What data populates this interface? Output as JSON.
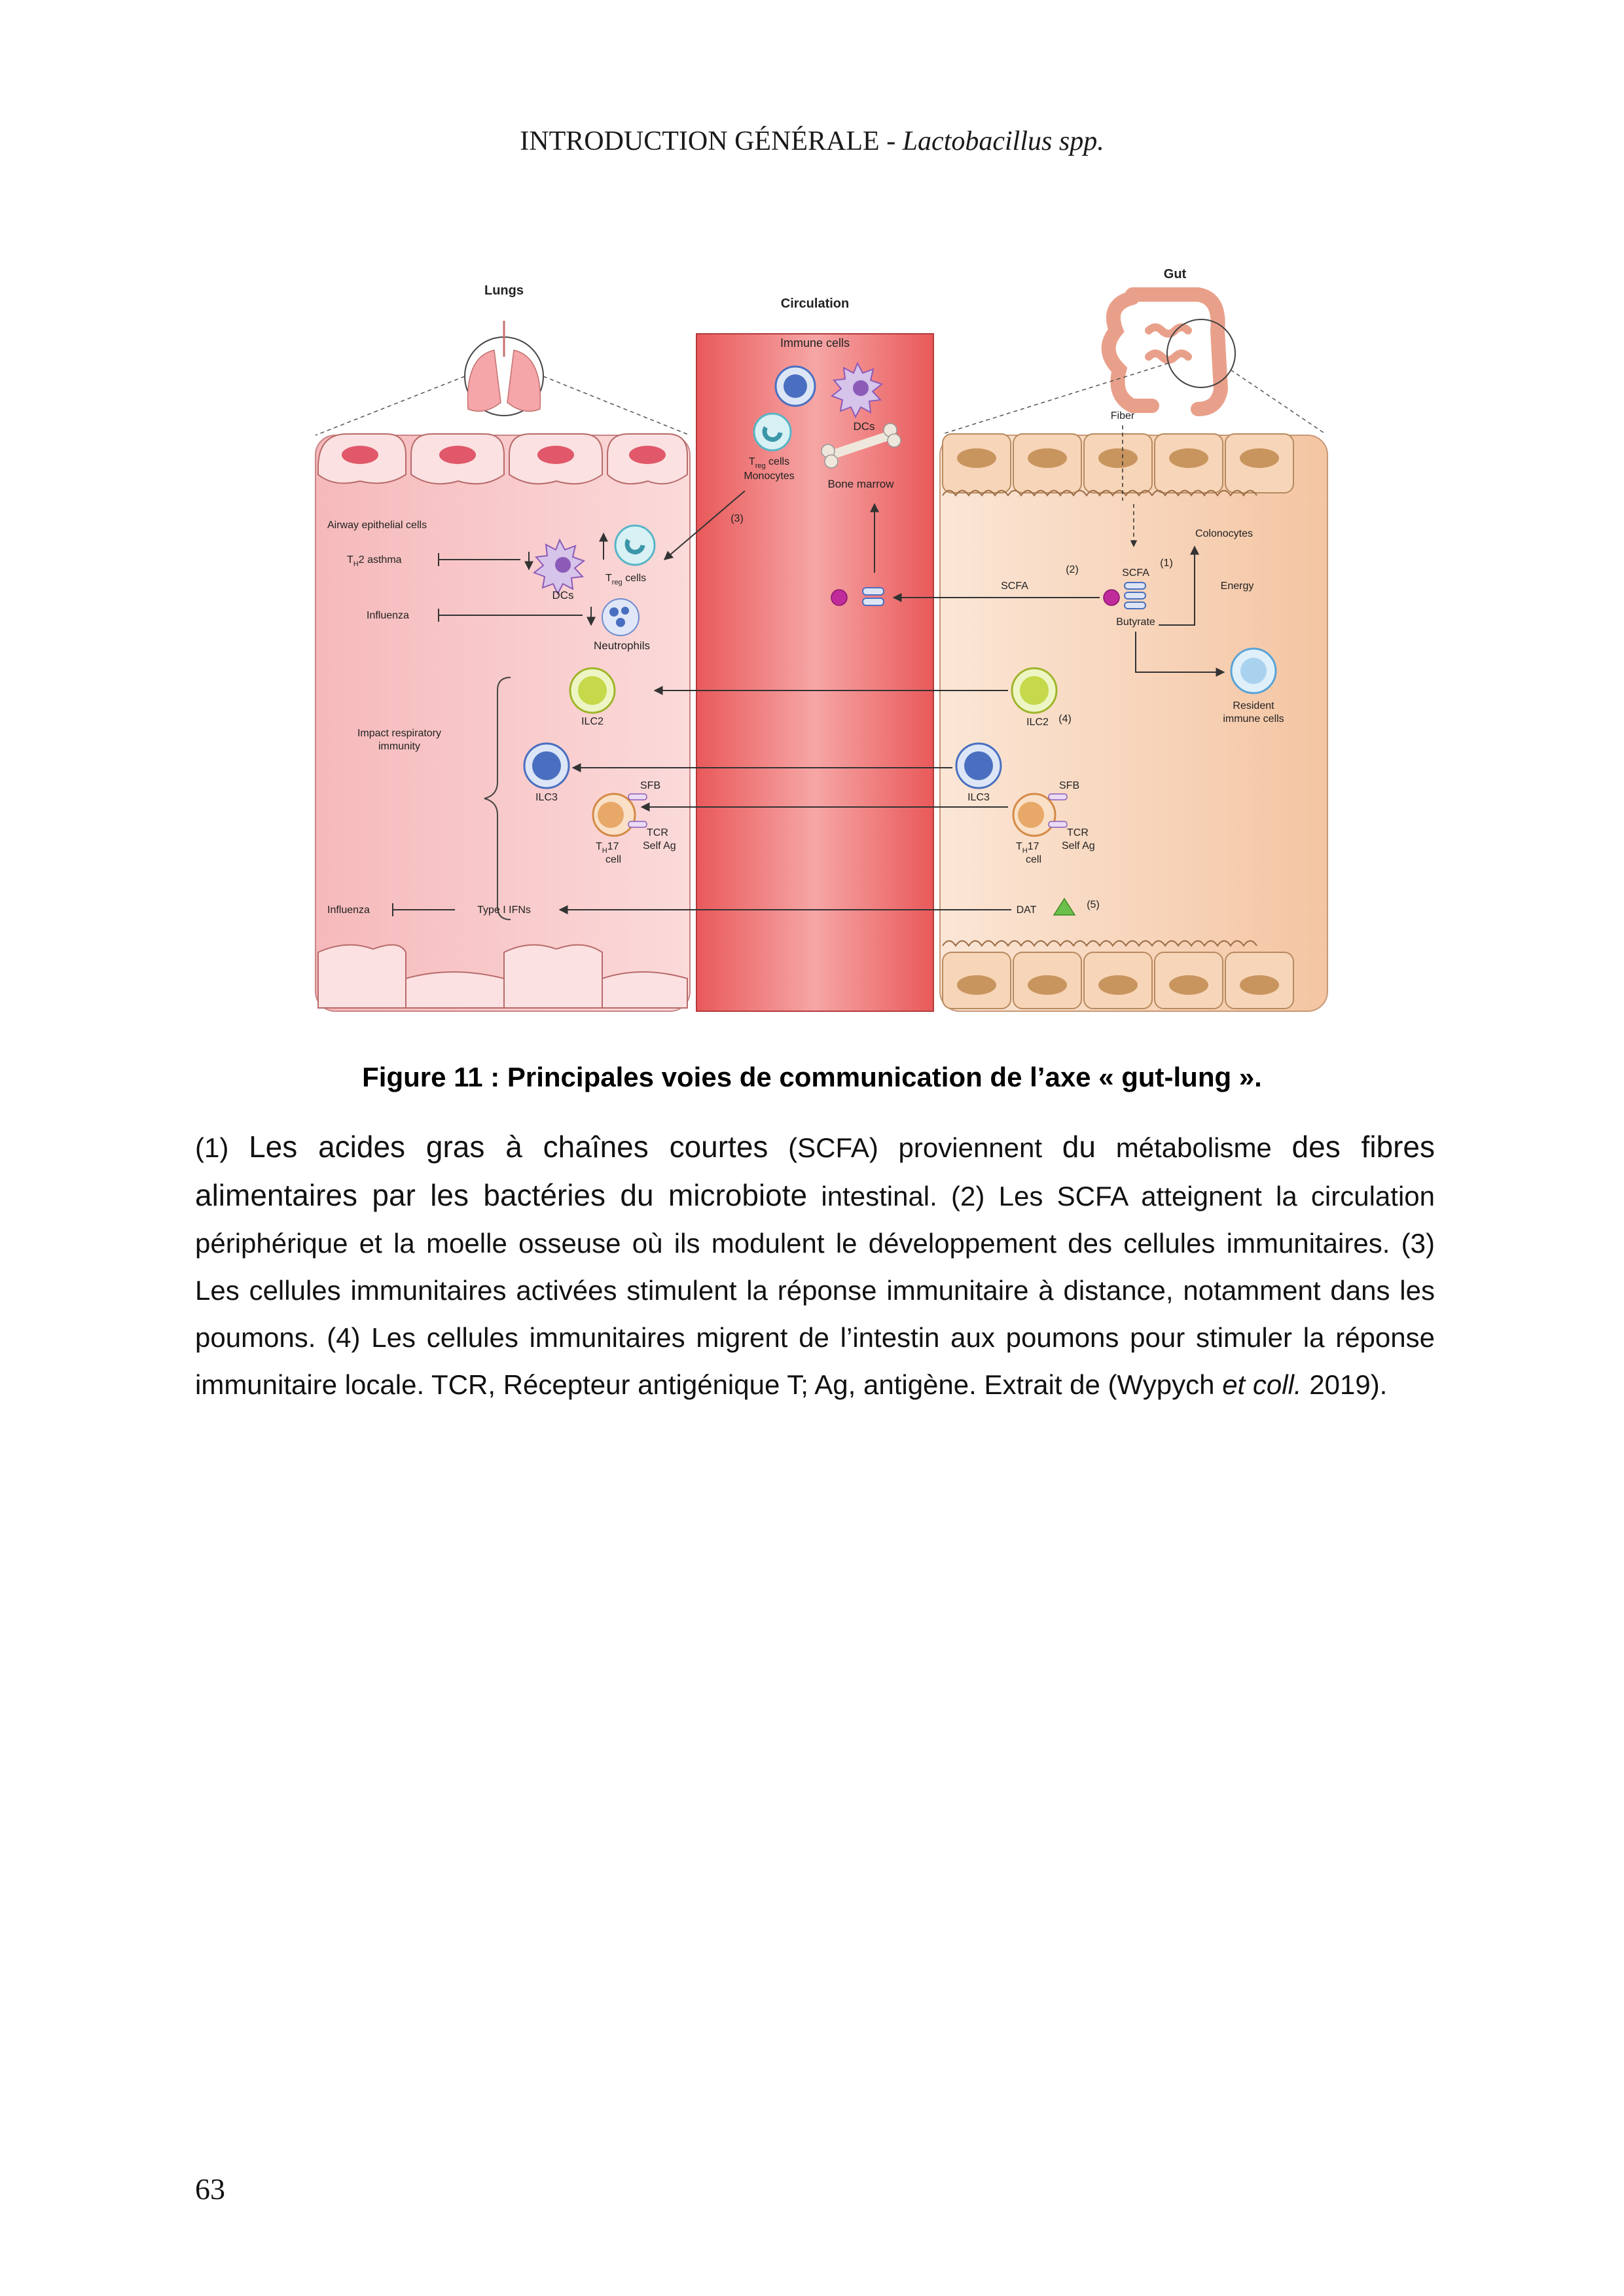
{
  "header": {
    "title": "INTRODUCTION GÉNÉRALE",
    "separator": "-",
    "subtitle": "Lactobacillus spp."
  },
  "figure": {
    "sections": {
      "lungs": "Lungs",
      "circulation": "Circulation",
      "gut": "Gut"
    },
    "labels": {
      "airway_epithelial_cells": "Airway epithelial cells",
      "th2_asthma": "T",
      "th2_asthma_sub": "H",
      "th2_asthma_rest": "2 asthma",
      "treg_cells_lung": "T",
      "treg_cells_lung_sub": "reg",
      "treg_cells_lung_rest": " cells",
      "dcs_lung": "DCs",
      "influenza_1": "Influenza",
      "neutrophils": "Neutrophils",
      "impact_line1": "Impact respiratory",
      "impact_line2": "immunity",
      "ilc2_lung": "ILC2",
      "ilc3_lung": "ILC3",
      "sfb_lung": "SFB",
      "tcr_lung": "TCR",
      "self_ag_lung": "Self Ag",
      "th17_lung": "T",
      "th17_lung_sub": "H",
      "th17_lung_rest": "17",
      "cell_lung": "cell",
      "influenza_2": "Influenza",
      "type1_ifns": "Type I IFNs",
      "immune_cells": "Immune cells",
      "dcs_circ": "DCs",
      "treg_circ": "T",
      "treg_circ_sub": "reg",
      "treg_circ_rest": " cells",
      "monocytes": "Monocytes",
      "bone_marrow": "Bone marrow",
      "marker_3": "(3)",
      "fiber": "Fiber",
      "colonocytes": "Colonocytes",
      "marker_2": "(2)",
      "scfa_arrow": "SCFA",
      "scfa_gut": "SCFA",
      "marker_1": "(1)",
      "energy": "Energy",
      "butyrate": "Butyrate",
      "resident_line1": "Resident",
      "resident_line2": "immune cells",
      "ilc2_gut": "ILC2",
      "marker_4": "(4)",
      "ilc3_gut": "ILC3",
      "sfb_gut": "SFB",
      "tcr_gut": "TCR",
      "self_ag_gut": "Self Ag",
      "th17_gut": "T",
      "th17_gut_sub": "H",
      "th17_gut_rest": "17",
      "cell_gut": "cell",
      "dat": "DAT",
      "marker_5": "(5)"
    },
    "colors": {
      "lung_tissue": "#f7c6c6",
      "circulation": "#ef6b6b",
      "gut_tissue": "#f6d3b3",
      "cell_blue": "#4a6fc0",
      "cell_green": "#c5d94a",
      "cell_orange": "#e8a868",
      "dc_purple": "#8c5bb8",
      "scfa_magenta": "#c02a9a"
    }
  },
  "caption": {
    "title": "Figure 11 : Principales voies de communication de l’axe « gut-lung ».",
    "p1_marker": "(1)",
    "p1_big_a": "Les acides gras à chaînes courtes",
    "p1_small_a": "(SCFA) proviennent",
    "p1_big_b": "du",
    "p1_small_b": "métabolisme",
    "p1_big_c": "des fibres alimentaires par les bactéries du microbiote",
    "p1_small_c": "intestinal. (2) Les SCFA atteignent la circulation périphérique et la moelle osseuse où ils modulent le développement des cellules immunitaires. (3) Les cellules immunitaires activées stimulent la réponse immunitaire à distance, notamment dans les poumons. (4) Les cellules immunitaires migrent de l’intestin aux poumons pour stimuler la réponse immunitaire locale. TCR, Récepteur antigénique T; Ag, antigène. Extrait de (Wypych",
    "p1_italic": "et coll.",
    "p1_end": "2019)."
  },
  "page_number": "63"
}
